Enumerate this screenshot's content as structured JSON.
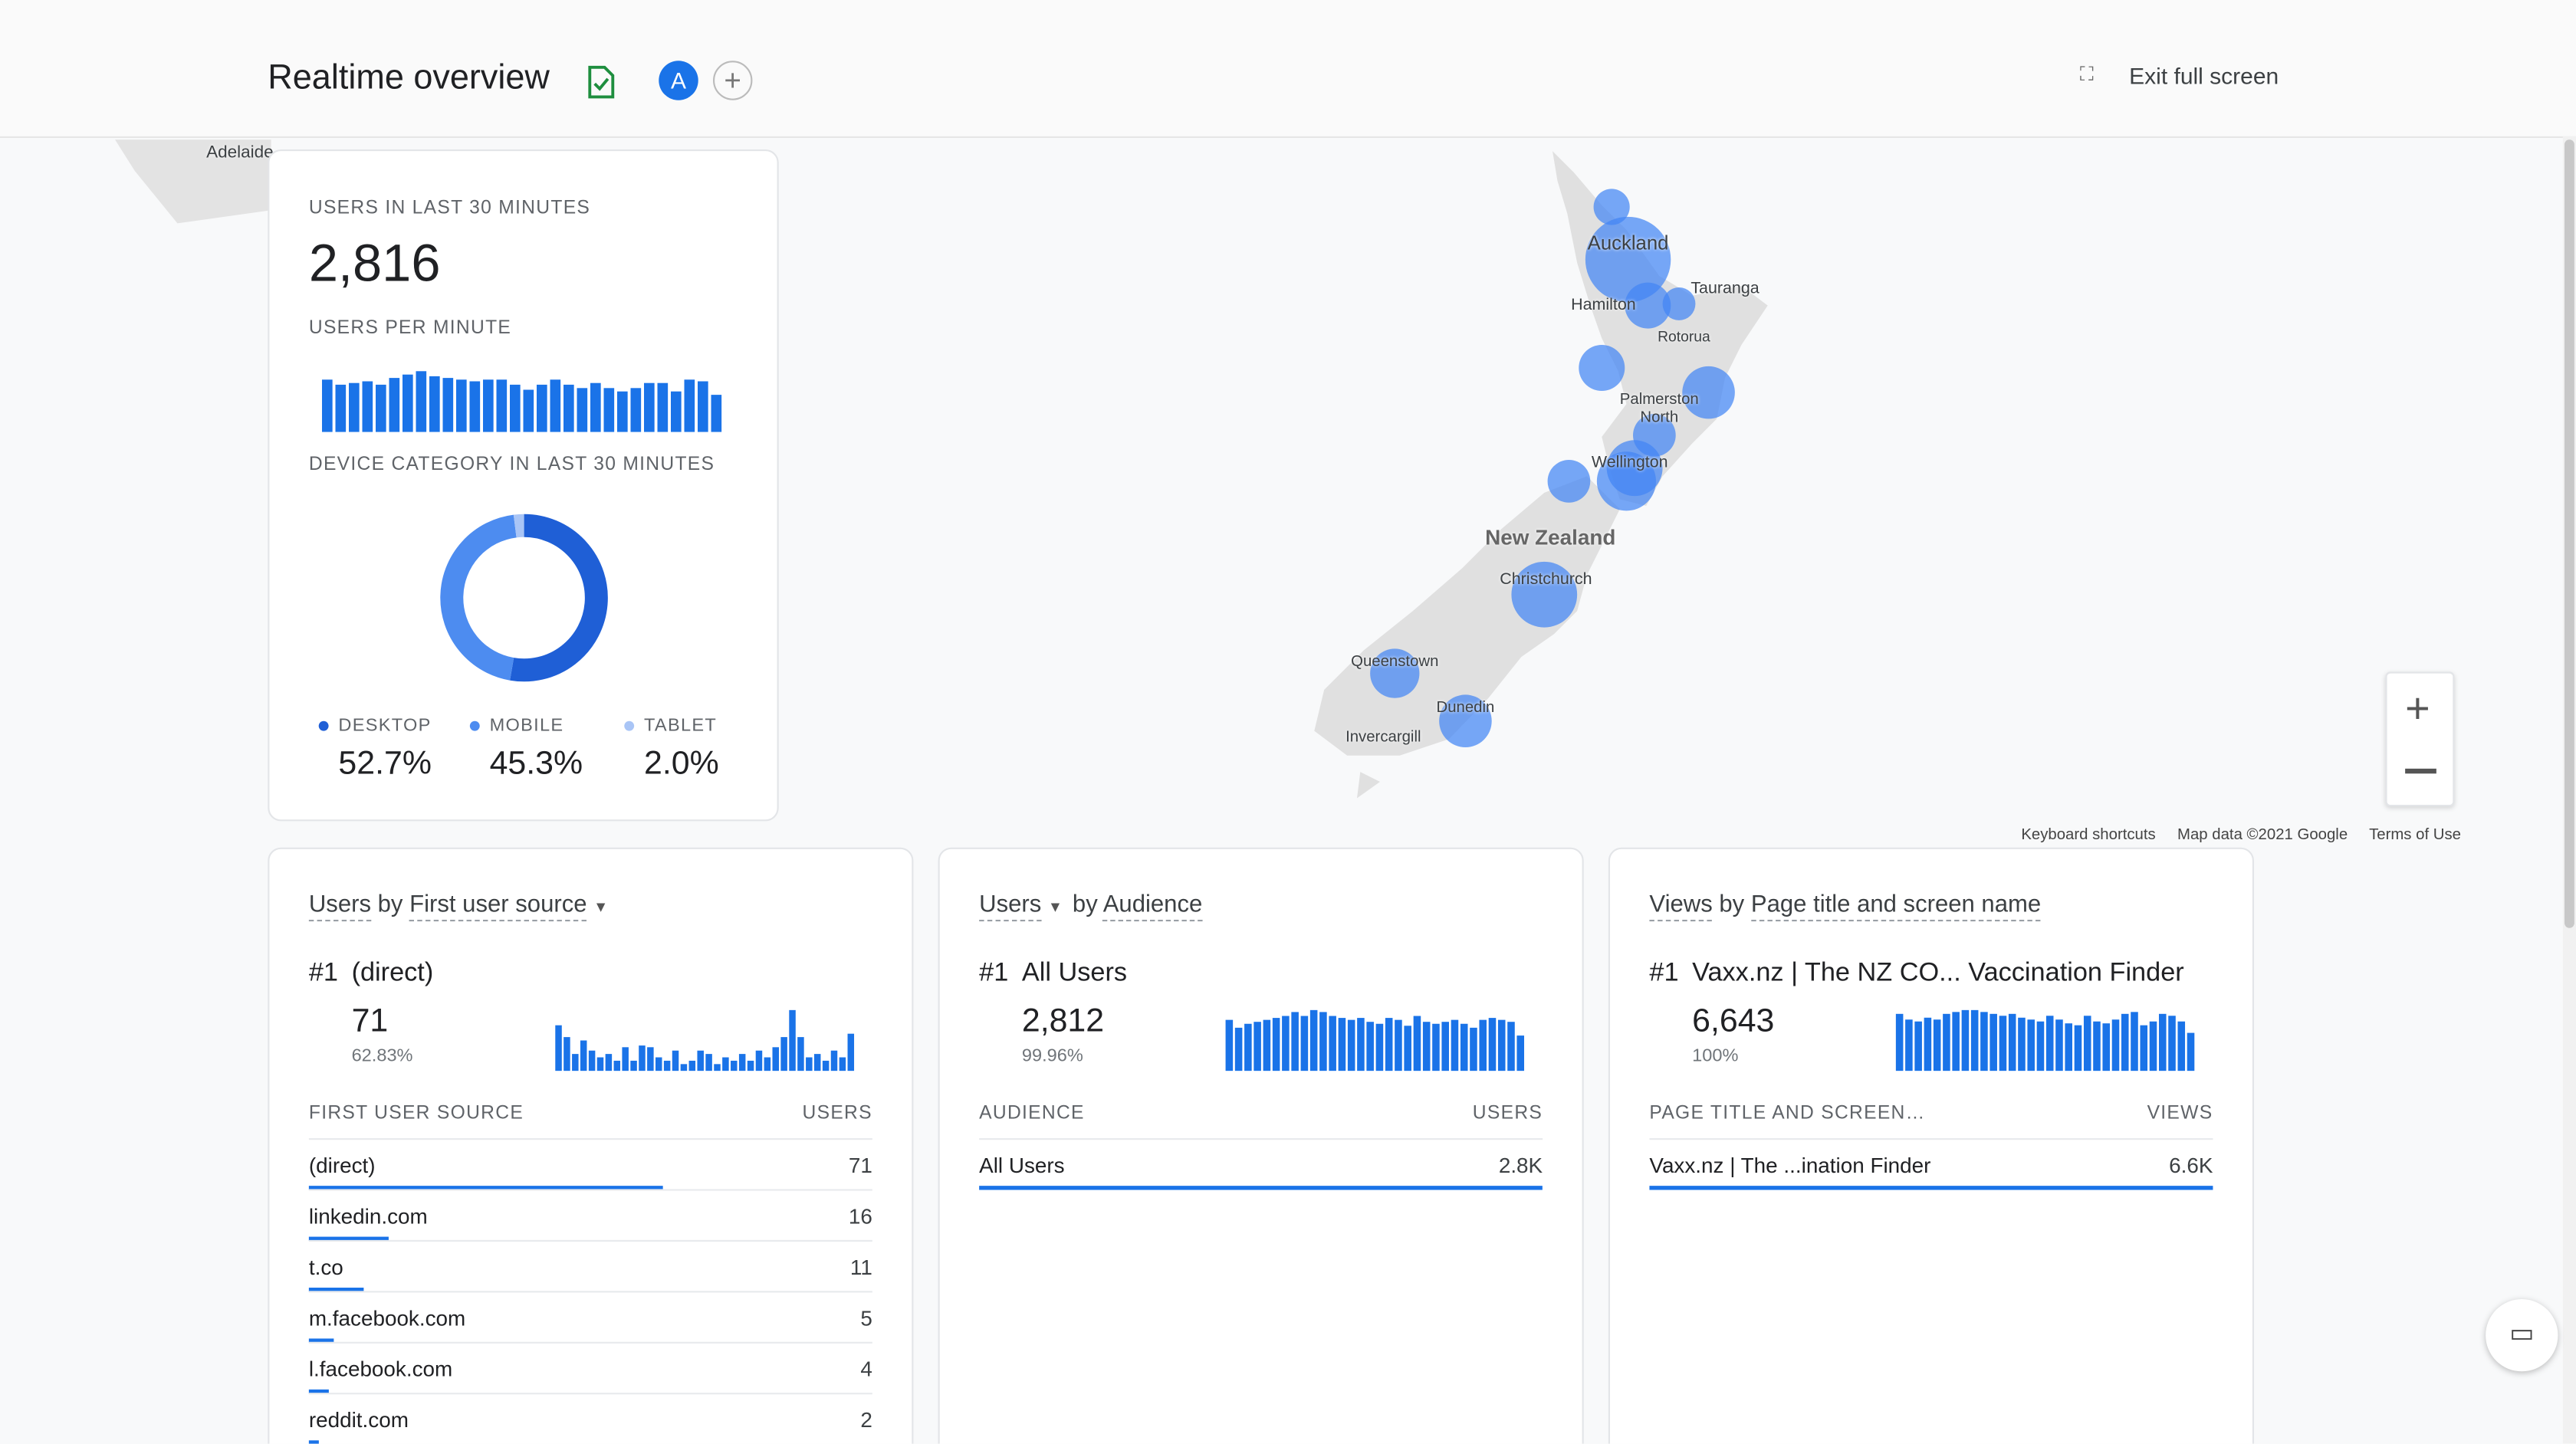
{
  "header": {
    "title": "Realtime overview",
    "avatar": "A",
    "exit": "Exit full screen"
  },
  "map": {
    "labels": [
      "Adelaide",
      "Auckland",
      "Tauranga",
      "Hamilton",
      "Rotorua",
      "Palmerston North",
      "Wellington",
      "New Zealand",
      "Christchurch",
      "Queenstown",
      "Dunedin",
      "Invercargill"
    ],
    "footer": [
      "Keyboard shortcuts",
      "Map data ©2021 Google",
      "Terms of Use"
    ]
  },
  "summary": {
    "users_label": "USERS IN LAST 30 MINUTES",
    "users": "2,816",
    "per_minute_label": "USERS PER MINUTE",
    "per_minute": [
      31,
      28,
      29,
      30,
      28,
      32,
      34,
      36,
      33,
      32,
      31,
      30,
      31,
      31,
      28,
      25,
      28,
      31,
      28,
      26,
      29,
      26,
      24,
      26,
      29,
      29,
      24,
      31,
      30,
      22
    ],
    "device_label": "DEVICE CATEGORY IN LAST 30 MINUTES",
    "devices": [
      {
        "name": "DESKTOP",
        "value": 52.7,
        "label": "52.7%",
        "color": "#1f5fd6"
      },
      {
        "name": "MOBILE",
        "value": 45.3,
        "label": "45.3%",
        "color": "#4d8cf0"
      },
      {
        "name": "TABLET",
        "value": 2.0,
        "label": "2.0%",
        "color": "#a9c5f6"
      }
    ]
  },
  "cards": [
    {
      "title": [
        "Users",
        "by",
        "First user source"
      ],
      "rank": "#1",
      "top": "(direct)",
      "top_value": "71",
      "share": 62.83,
      "share_label": "62.83%",
      "trend": [
        27,
        20,
        10,
        18,
        12,
        8,
        10,
        6,
        14,
        6,
        15,
        14,
        8,
        6,
        12,
        4,
        6,
        12,
        10,
        4,
        8,
        6,
        10,
        6,
        12,
        8,
        14,
        20,
        36,
        20,
        8,
        10,
        6,
        12,
        8,
        22
      ],
      "columns": [
        "FIRST USER SOURCE",
        "USERS"
      ],
      "rows": [
        {
          "name": "(direct)",
          "value": 71
        },
        {
          "name": "linkedin.com",
          "value": 16
        },
        {
          "name": "t.co",
          "value": 11
        },
        {
          "name": "m.facebook.com",
          "value": 5
        },
        {
          "name": "l.facebook.com",
          "value": 4
        },
        {
          "name": "reddit.com",
          "value": 2
        }
      ]
    },
    {
      "title": [
        "Users",
        "by",
        "Audience"
      ],
      "rank": "#1",
      "top": "All Users",
      "top_value": "2,812",
      "share": 99.96,
      "share_label": "99.96%",
      "trend": [
        26,
        22,
        24,
        25,
        26,
        27,
        28,
        30,
        28,
        31,
        30,
        28,
        27,
        26,
        27,
        25,
        24,
        27,
        26,
        23,
        28,
        25,
        24,
        25,
        26,
        24,
        22,
        26,
        27,
        26,
        25,
        18
      ],
      "columns": [
        "AUDIENCE",
        "USERS"
      ],
      "rows": [
        {
          "name": "All Users",
          "value": 2800,
          "label": "2.8K"
        }
      ]
    },
    {
      "title": [
        "Views",
        "by",
        "Page title and screen name"
      ],
      "rank": "#1",
      "top": "Vaxx.nz | The NZ CO... Vaccination Finder",
      "top_value": "6,643",
      "share": 100,
      "share_label": "100%",
      "trend": [
        30,
        27,
        26,
        28,
        27,
        30,
        31,
        32,
        32,
        31,
        30,
        29,
        30,
        28,
        27,
        26,
        29,
        27,
        25,
        24,
        29,
        26,
        25,
        27,
        30,
        31,
        24,
        26,
        30,
        29,
        26,
        20
      ],
      "columns": [
        "PAGE TITLE AND SCREEN…",
        "VIEWS"
      ],
      "rows": [
        {
          "name": "Vaxx.nz | The ...ination Finder",
          "value": 6600,
          "label": "6.6K"
        }
      ]
    }
  ]
}
